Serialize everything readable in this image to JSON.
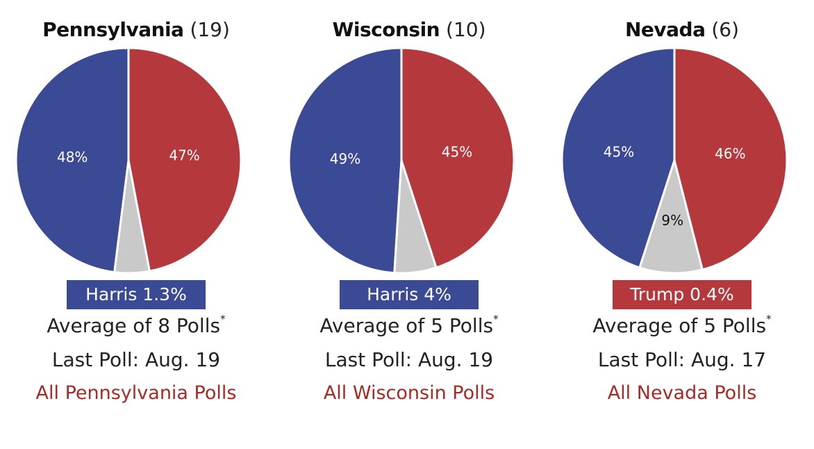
{
  "colors": {
    "harris": "#3b4a94",
    "trump": "#b5383c",
    "undecided": "#c9c9c9",
    "link": "#a62a25"
  },
  "chart_data": [
    {
      "type": "pie",
      "state": "Pennsylvania",
      "electoral_votes": "(19)",
      "slices": [
        {
          "candidate": "Harris",
          "value": 48,
          "label": "48%",
          "color": "#3b4a94"
        },
        {
          "candidate": "Trump",
          "value": 47,
          "label": "47%",
          "color": "#b5383c"
        },
        {
          "candidate": "Undecided",
          "value": 5,
          "label": "",
          "color": "#c9c9c9"
        }
      ],
      "leader_text": "Harris 1.3%",
      "leader_color": "#3b4a94",
      "average_text": "Average of 8 Polls",
      "average_mark": "*",
      "last_poll": "Last Poll: Aug. 19",
      "link_text": "All Pennsylvania Polls"
    },
    {
      "type": "pie",
      "state": "Wisconsin",
      "electoral_votes": "(10)",
      "slices": [
        {
          "candidate": "Harris",
          "value": 49,
          "label": "49%",
          "color": "#3b4a94"
        },
        {
          "candidate": "Trump",
          "value": 45,
          "label": "45%",
          "color": "#b5383c"
        },
        {
          "candidate": "Undecided",
          "value": 6,
          "label": "",
          "color": "#c9c9c9"
        }
      ],
      "leader_text": "Harris 4%",
      "leader_color": "#3b4a94",
      "average_text": "Average of 5 Polls",
      "average_mark": "*",
      "last_poll": "Last Poll: Aug. 19",
      "link_text": "All Wisconsin Polls"
    },
    {
      "type": "pie",
      "state": "Nevada",
      "electoral_votes": "(6)",
      "slices": [
        {
          "candidate": "Harris",
          "value": 45,
          "label": "45%",
          "color": "#3b4a94"
        },
        {
          "candidate": "Trump",
          "value": 46,
          "label": "46%",
          "color": "#b5383c"
        },
        {
          "candidate": "Undecided",
          "value": 9,
          "label": "9%",
          "color": "#c9c9c9"
        }
      ],
      "leader_text": "Trump 0.4%",
      "leader_color": "#b5383c",
      "average_text": "Average of 5 Polls",
      "average_mark": "*",
      "last_poll": "Last Poll: Aug. 17",
      "link_text": "All Nevada Polls"
    }
  ]
}
